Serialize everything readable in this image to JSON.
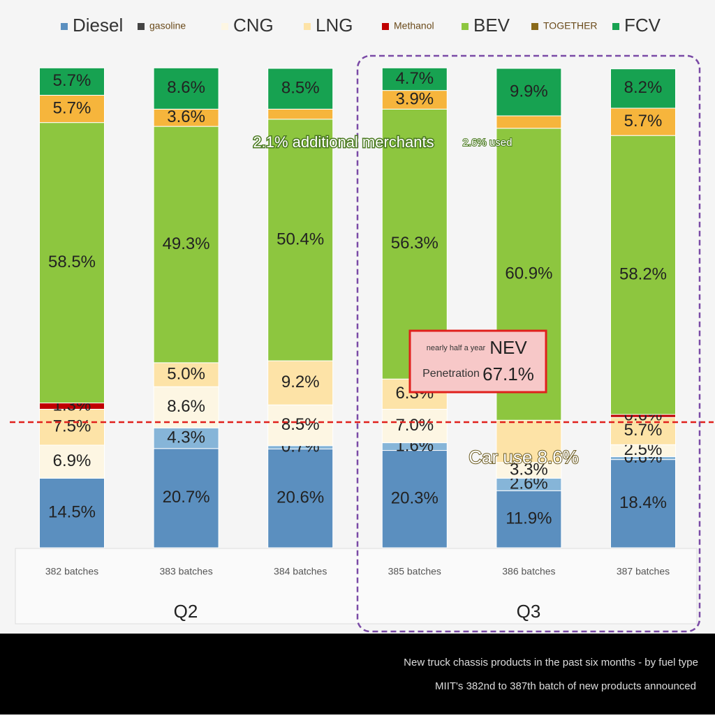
{
  "chart_data": {
    "type": "stacked-bar",
    "categories": [
      "382 batches",
      "383 batches",
      "384 batches",
      "385 batches",
      "386 batches",
      "387 batches"
    ],
    "ylim": [
      0,
      100
    ],
    "series": [
      {
        "name": "Diesel",
        "color": "#5b8fbf",
        "values": [
          14.5,
          20.7,
          20.6,
          20.3,
          11.9,
          18.4
        ],
        "value_labels": [
          "14.5%",
          "20.7%",
          "20.6%",
          "20.3%",
          "11.9%",
          "18.4%"
        ]
      },
      {
        "name": "gasoline",
        "color": "#86b5d8",
        "legend_color": "#444444",
        "values": [
          0,
          4.3,
          0.7,
          1.6,
          2.6,
          0.6
        ],
        "value_labels": [
          null,
          "4.3%",
          "0.7%",
          "1.6%",
          "2.6%",
          "0.6%"
        ]
      },
      {
        "name": "CNG",
        "color": "#fdf6e3",
        "values": [
          6.9,
          8.6,
          8.5,
          7.0,
          3.3,
          2.5
        ],
        "value_labels": [
          "6.9%",
          "8.6%",
          "8.5%",
          "7.0%",
          "3.3%",
          "2.5%"
        ]
      },
      {
        "name": "LNG",
        "color": "#fde3a7",
        "values": [
          7.5,
          5.0,
          9.2,
          6.3,
          8.8,
          5.7
        ],
        "value_labels": [
          "7.5%",
          "5.0%",
          "9.2%",
          "6.3%",
          null,
          "5.7%"
        ]
      },
      {
        "name": "Methanol",
        "color": "#c00000",
        "values": [
          1.3,
          0,
          0,
          0,
          0,
          0.6
        ],
        "value_labels": [
          "1.3%",
          null,
          null,
          null,
          null,
          "0.6%"
        ]
      },
      {
        "name": "BEV",
        "color": "#8dc63f",
        "values": [
          58.5,
          49.3,
          50.4,
          56.3,
          60.9,
          58.2
        ],
        "value_labels": [
          "58.5%",
          "49.3%",
          "50.4%",
          "56.3%",
          "60.9%",
          "58.2%"
        ]
      },
      {
        "name": "TOGETHER",
        "color": "#f6b53c",
        "legend_color": "#8a6a1a",
        "values": [
          5.7,
          3.6,
          2.1,
          3.9,
          2.6,
          5.7
        ],
        "value_labels": [
          "5.7%",
          "3.6%",
          null,
          "3.9%",
          null,
          "5.7%"
        ]
      },
      {
        "name": "FCV",
        "color": "#17a251",
        "values": [
          5.7,
          8.6,
          8.5,
          4.7,
          9.9,
          8.2
        ],
        "value_labels": [
          "5.7%",
          "8.6%",
          "8.5%",
          "4.7%",
          "9.9%",
          "8.2%"
        ]
      }
    ],
    "groups": [
      "Q2",
      "Q3"
    ],
    "annotations": {
      "a1": "2.1% additional merchants",
      "a2": "2.6% used",
      "box_small": "nearly half a year",
      "box_nev": "NEV",
      "box_pen": "Penetration",
      "box_val": "67.1%",
      "car_use": "Car use 8.6%"
    },
    "footer": [
      "New truck chassis products in the past six months - by fuel type",
      "MIIT's 382nd to 387th batch of new products announced"
    ]
  }
}
